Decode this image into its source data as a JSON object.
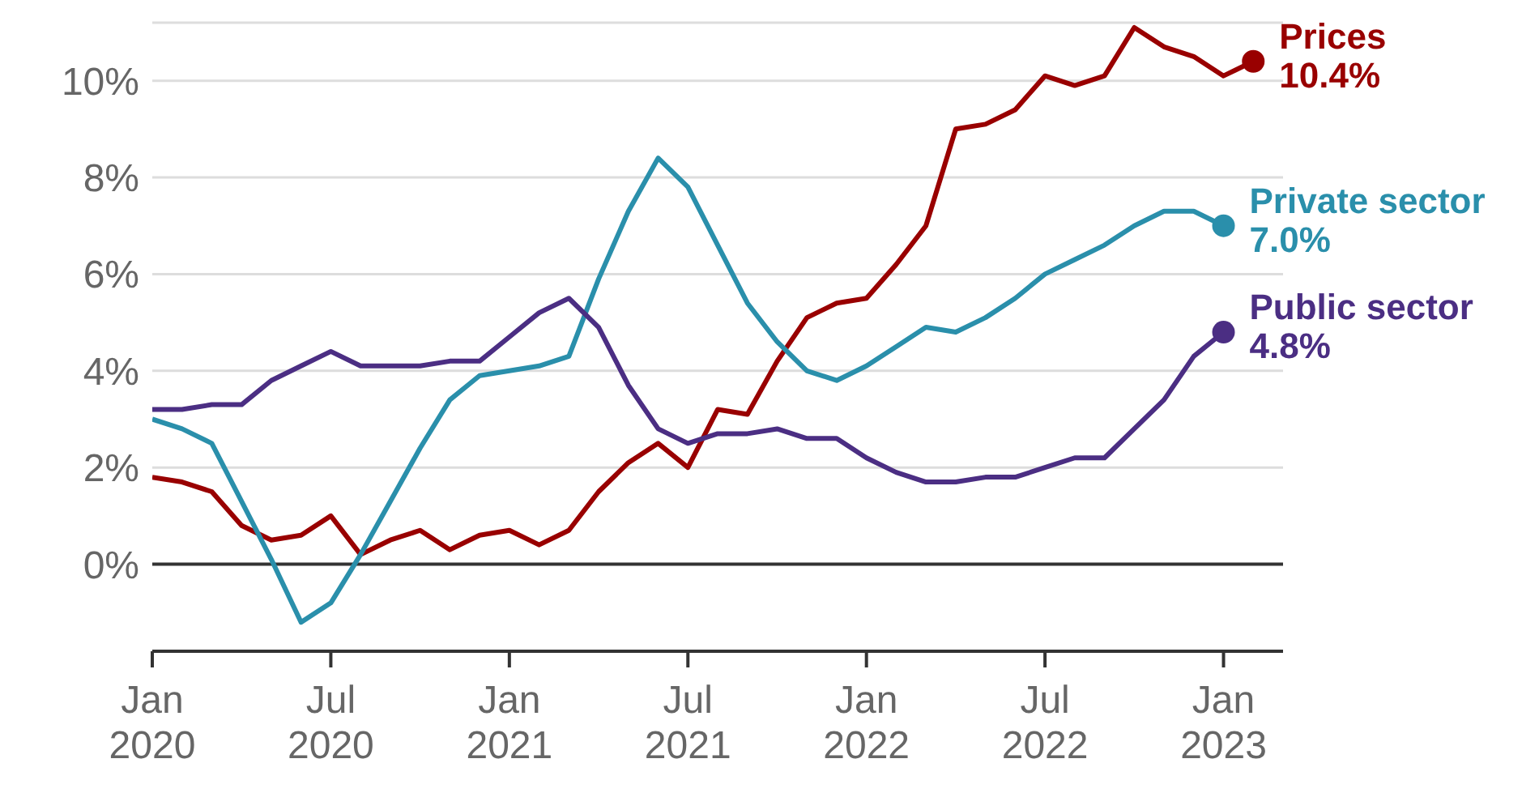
{
  "chart_data": {
    "type": "line",
    "xlim": [
      "2020-01",
      "2023-03"
    ],
    "xticks": [
      {
        "value": "2020-01",
        "label": "Jan 2020"
      },
      {
        "value": "2020-07",
        "label": "Jul 2020"
      },
      {
        "value": "2021-01",
        "label": "Jan 2021"
      },
      {
        "value": "2021-07",
        "label": "Jul 2021"
      },
      {
        "value": "2022-01",
        "label": "Jan 2022"
      },
      {
        "value": "2022-07",
        "label": "Jul 2022"
      },
      {
        "value": "2023-01",
        "label": "Jan 2023"
      }
    ],
    "ylim": [
      -1.8,
      11.2
    ],
    "yticks": [
      {
        "value": 0,
        "label": "0%"
      },
      {
        "value": 2,
        "label": "2%"
      },
      {
        "value": 4,
        "label": "4%"
      },
      {
        "value": 6,
        "label": "6%"
      },
      {
        "value": 8,
        "label": "8%"
      },
      {
        "value": 10,
        "label": "10%"
      }
    ],
    "grid": "y",
    "ref_lines": [
      {
        "axis": "y",
        "value": 0,
        "color": "#333333"
      }
    ],
    "series": [
      {
        "name": "Prices",
        "color": "#990000",
        "x": [
          "2020-01",
          "2020-02",
          "2020-03",
          "2020-04",
          "2020-05",
          "2020-06",
          "2020-07",
          "2020-08",
          "2020-09",
          "2020-10",
          "2020-11",
          "2020-12",
          "2021-01",
          "2021-02",
          "2021-03",
          "2021-04",
          "2021-05",
          "2021-06",
          "2021-07",
          "2021-08",
          "2021-09",
          "2021-10",
          "2021-11",
          "2021-12",
          "2022-01",
          "2022-02",
          "2022-03",
          "2022-04",
          "2022-05",
          "2022-06",
          "2022-07",
          "2022-08",
          "2022-09",
          "2022-10",
          "2022-11",
          "2022-12",
          "2023-01",
          "2023-02"
        ],
        "values": [
          1.8,
          1.7,
          1.5,
          0.8,
          0.5,
          0.6,
          1.0,
          0.2,
          0.5,
          0.7,
          0.3,
          0.6,
          0.7,
          0.4,
          0.7,
          1.5,
          2.1,
          2.5,
          2.0,
          3.2,
          3.1,
          4.2,
          5.1,
          5.4,
          5.5,
          6.2,
          7.0,
          9.0,
          9.1,
          9.4,
          10.1,
          9.9,
          10.1,
          11.1,
          10.7,
          10.5,
          10.1,
          10.4
        ],
        "value_labels": [
          null,
          null,
          null,
          null,
          null,
          null,
          null,
          null,
          null,
          null,
          null,
          null,
          null,
          null,
          null,
          null,
          null,
          null,
          null,
          null,
          null,
          null,
          null,
          null,
          null,
          null,
          null,
          null,
          null,
          null,
          null,
          null,
          null,
          null,
          null,
          null,
          null,
          "10.4%"
        ]
      },
      {
        "name": "Private sector",
        "color": "#2a8fab",
        "x": [
          "2020-01",
          "2020-02",
          "2020-03",
          "2020-04",
          "2020-05",
          "2020-06",
          "2020-07",
          "2020-08",
          "2020-09",
          "2020-10",
          "2020-11",
          "2020-12",
          "2021-01",
          "2021-02",
          "2021-03",
          "2021-04",
          "2021-05",
          "2021-06",
          "2021-07",
          "2021-08",
          "2021-09",
          "2021-10",
          "2021-11",
          "2021-12",
          "2022-01",
          "2022-02",
          "2022-03",
          "2022-04",
          "2022-05",
          "2022-06",
          "2022-07",
          "2022-08",
          "2022-09",
          "2022-10",
          "2022-11",
          "2022-12",
          "2023-01"
        ],
        "values": [
          3.0,
          2.8,
          2.5,
          1.3,
          0.1,
          -1.2,
          -0.8,
          0.2,
          1.3,
          2.4,
          3.4,
          3.9,
          4.0,
          4.1,
          4.3,
          5.9,
          7.3,
          8.4,
          7.8,
          6.6,
          5.4,
          4.6,
          4.0,
          3.8,
          4.1,
          4.5,
          4.9,
          4.8,
          5.1,
          5.5,
          6.0,
          6.3,
          6.6,
          7.0,
          7.3,
          7.3,
          7.0
        ],
        "value_labels": [
          null,
          null,
          null,
          null,
          null,
          null,
          null,
          null,
          null,
          null,
          null,
          null,
          null,
          null,
          null,
          null,
          null,
          null,
          null,
          null,
          null,
          null,
          null,
          null,
          null,
          null,
          null,
          null,
          null,
          null,
          null,
          null,
          null,
          null,
          null,
          null,
          "7.0%"
        ]
      },
      {
        "name": "Public sector",
        "color": "#4b2e83",
        "x": [
          "2020-01",
          "2020-02",
          "2020-03",
          "2020-04",
          "2020-05",
          "2020-06",
          "2020-07",
          "2020-08",
          "2020-09",
          "2020-10",
          "2020-11",
          "2020-12",
          "2021-01",
          "2021-02",
          "2021-03",
          "2021-04",
          "2021-05",
          "2021-06",
          "2021-07",
          "2021-08",
          "2021-09",
          "2021-10",
          "2021-11",
          "2021-12",
          "2022-01",
          "2022-02",
          "2022-03",
          "2022-04",
          "2022-05",
          "2022-06",
          "2022-07",
          "2022-08",
          "2022-09",
          "2022-10",
          "2022-11",
          "2022-12",
          "2023-01"
        ],
        "values": [
          3.2,
          3.2,
          3.3,
          3.3,
          3.8,
          4.1,
          4.4,
          4.1,
          4.1,
          4.1,
          4.2,
          4.2,
          4.7,
          5.2,
          5.5,
          4.9,
          3.7,
          2.8,
          2.5,
          2.7,
          2.7,
          2.8,
          2.6,
          2.6,
          2.2,
          1.9,
          1.7,
          1.7,
          1.8,
          1.8,
          2.0,
          2.2,
          2.2,
          2.8,
          3.4,
          4.3,
          4.8
        ],
        "value_labels": [
          null,
          null,
          null,
          null,
          null,
          null,
          null,
          null,
          null,
          null,
          null,
          null,
          null,
          null,
          null,
          null,
          null,
          null,
          null,
          null,
          null,
          null,
          null,
          null,
          null,
          null,
          null,
          null,
          null,
          null,
          null,
          null,
          null,
          null,
          null,
          null,
          "4.8%"
        ]
      }
    ]
  }
}
